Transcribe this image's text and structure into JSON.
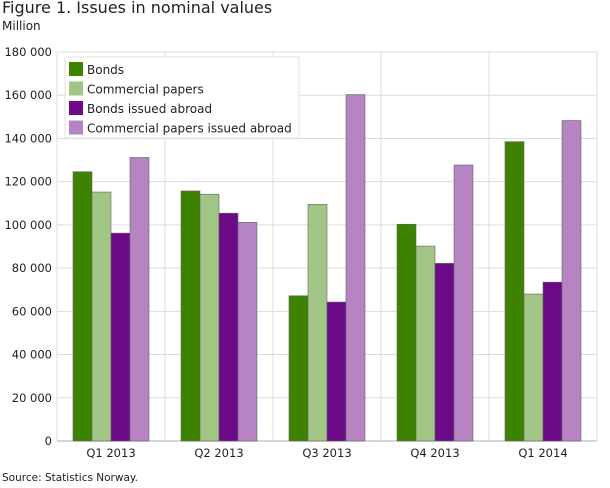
{
  "chart_data": {
    "type": "bar",
    "title": "Figure 1. Issues in nominal values",
    "ylabel": "Million",
    "xlabel": "",
    "categories": [
      "Q1 2013",
      "Q2 2013",
      "Q3 2013",
      "Q4 2013",
      "Q1 2014"
    ],
    "series": [
      {
        "name": "Bonds",
        "color": "#3d8200",
        "values": [
          124600,
          115700,
          67200,
          100300,
          138500
        ]
      },
      {
        "name": "Commercial papers",
        "color": "#a0c584",
        "values": [
          115200,
          114200,
          109500,
          90200,
          68000
        ]
      },
      {
        "name": "Bonds issued abroad",
        "color": "#6a0a87",
        "values": [
          96200,
          105400,
          64300,
          82200,
          73500
        ]
      },
      {
        "name": "Commercial papers issued abroad",
        "color": "#b784c3",
        "values": [
          131200,
          101200,
          160300,
          127700,
          148300
        ]
      }
    ],
    "ylim": [
      0,
      180000
    ],
    "yticks": [
      "0",
      "20 000",
      "40 000",
      "60 000",
      "80 000",
      "100 000",
      "120 000",
      "140 000",
      "160 000",
      "180 000"
    ],
    "grid": true,
    "legend_position": "top-left",
    "source": "Source: Statistics Norway."
  }
}
